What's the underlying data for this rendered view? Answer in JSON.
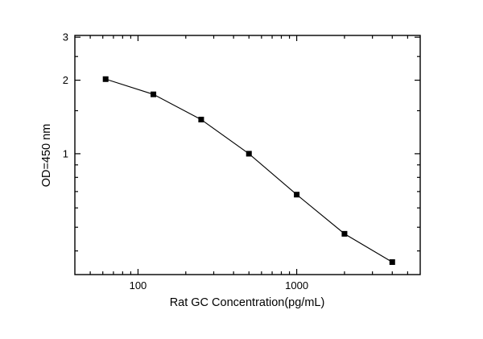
{
  "chart_data": {
    "type": "line",
    "title": "",
    "xlabel": "Rat GC  Concentration(pg/mL)",
    "ylabel": "OD=450 nm",
    "x_scale": "log",
    "y_scale": "log",
    "x": [
      62.5,
      125,
      250,
      500,
      1000,
      2000,
      4000
    ],
    "y": [
      2.02,
      1.75,
      1.38,
      1.0,
      0.68,
      0.47,
      0.36
    ],
    "xlim": [
      40,
      6000
    ],
    "ylim": [
      0.32,
      3.05
    ],
    "x_ticks_major": [
      100,
      1000
    ],
    "x_tick_labels": [
      "100",
      "1000"
    ],
    "x_ticks_minor": [
      50,
      60,
      70,
      80,
      90,
      200,
      300,
      400,
      500,
      600,
      700,
      800,
      900,
      2000,
      3000,
      4000,
      5000
    ],
    "y_ticks_major": [
      1,
      2,
      3
    ],
    "y_tick_labels": [
      "1",
      "2",
      "3"
    ],
    "y_ticks_minor": [
      0.4,
      0.5,
      0.6,
      0.7,
      0.8,
      0.9,
      1.5,
      2.5
    ],
    "marker": "square",
    "marker_color": "#000000",
    "line_color": "#000000",
    "axis_color": "#000000",
    "background": "#ffffff",
    "grid": "off",
    "legend": "none"
  }
}
